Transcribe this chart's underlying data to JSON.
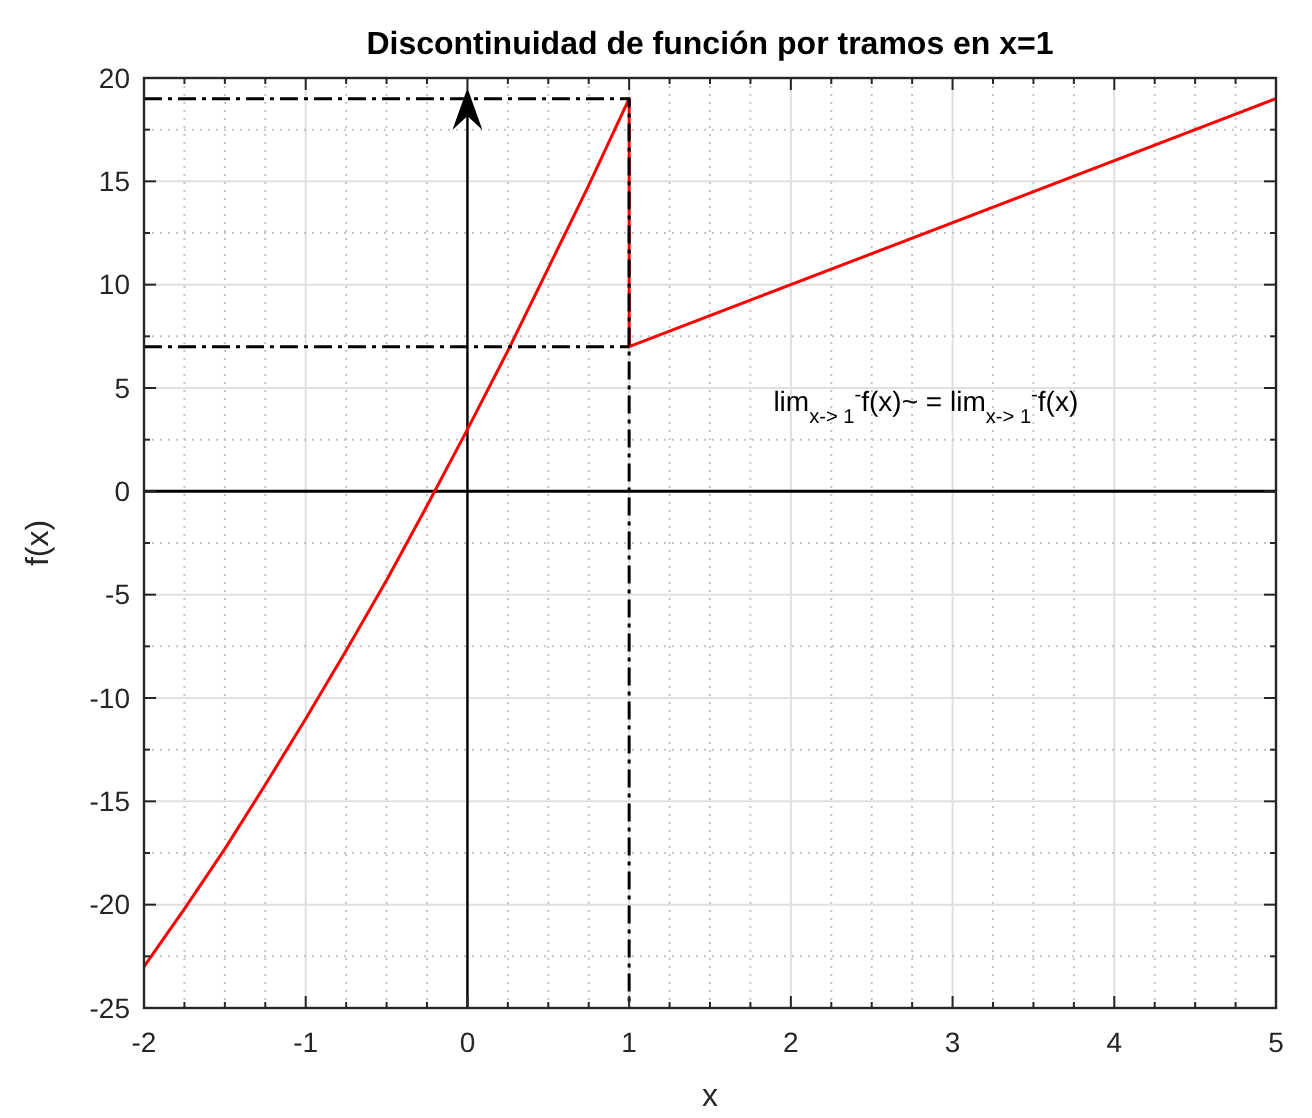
{
  "chart_data": {
    "type": "line",
    "title": "Discontinuidad de función por tramos en x=1",
    "xlabel": "x",
    "ylabel": "f(x)",
    "xlim": [
      -2,
      5
    ],
    "ylim": [
      -25,
      20
    ],
    "xticks": [
      -2,
      {
        "value": -1.75,
        "label": null
      },
      {
        "value": -1.5,
        "label": null
      },
      {
        "value": -1.25,
        "label": null
      },
      -1,
      {
        "value": -0.75,
        "label": null
      },
      {
        "value": -0.5,
        "label": null
      },
      {
        "value": -0.25,
        "label": null
      },
      0,
      {
        "value": 0.25,
        "label": null
      },
      {
        "value": 0.5,
        "label": null
      },
      {
        "value": 0.75,
        "label": null
      },
      1,
      {
        "value": 1.25,
        "label": null
      },
      {
        "value": 1.5,
        "label": null
      },
      {
        "value": 1.75,
        "label": null
      },
      2,
      {
        "value": 2.25,
        "label": null
      },
      {
        "value": 2.5,
        "label": null
      },
      {
        "value": 2.75,
        "label": null
      },
      3,
      {
        "value": 3.25,
        "label": null
      },
      {
        "value": 3.5,
        "label": null
      },
      {
        "value": 3.75,
        "label": null
      },
      4,
      {
        "value": 4.25,
        "label": null
      },
      {
        "value": 4.5,
        "label": null
      },
      {
        "value": 4.75,
        "label": null
      },
      5
    ],
    "yticks": [
      -25,
      {
        "value": -22.5,
        "label": null
      },
      -20,
      {
        "value": -17.5,
        "label": null
      },
      -15,
      {
        "value": -12.5,
        "label": null
      },
      -10,
      {
        "value": -7.5,
        "label": null
      },
      -5,
      {
        "value": -2.5,
        "label": null
      },
      0,
      {
        "value": 2.5,
        "label": null
      },
      5,
      {
        "value": 7.5,
        "label": null
      },
      10,
      {
        "value": 12.5,
        "label": null
      },
      15,
      {
        "value": 17.5,
        "label": null
      },
      20
    ],
    "grid": true,
    "series": [
      {
        "color": "#000000",
        "x": [
          -2,
          5
        ],
        "values": [
          0,
          0
        ]
      },
      {
        "color": "#ff0000",
        "x": [
          -2,
          -1.75,
          -1.5,
          -1.25,
          -1,
          -0.75,
          -0.5,
          -0.25,
          0,
          0.25,
          0.5,
          0.75,
          1,
          1,
          5
        ],
        "values": [
          -23,
          -20.2,
          -17.3,
          -14.2,
          -11,
          -7.7,
          -4.3,
          -0.7,
          3,
          6.8,
          10.8,
          14.8,
          19,
          7,
          19
        ]
      },
      {
        "color": "#000000",
        "x": [
          -2,
          1,
          1
        ],
        "values": [
          19,
          19,
          -25
        ],
        "line_style": "dashdot"
      },
      {
        "color": "#000000",
        "x": [
          -2,
          1
        ],
        "values": [
          7,
          7
        ],
        "line_style": "dashdot"
      }
    ],
    "ref_lines": [
      {
        "axis": "x",
        "value": 0,
        "color": "#000000"
      }
    ],
    "annotations": [
      "lim$_{x-> 1}$$^{-}$f(x)~ = lim$_{x-> 1}$$^{-}$f(x)"
    ]
  }
}
